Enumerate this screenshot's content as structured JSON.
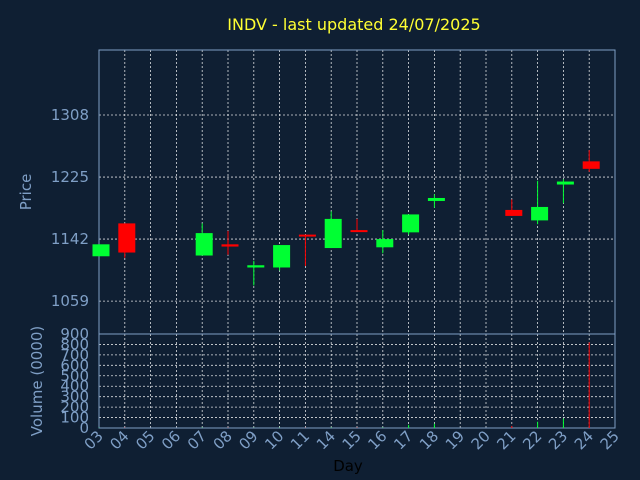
{
  "colors": {
    "background": "#0f1f33",
    "title": "#ffff33",
    "axis": "#7f9fc6",
    "up": "#00ff33",
    "down": "#ff0000",
    "grid": "#ffffff",
    "xlabel": "#000000"
  },
  "chart_data": [
    {
      "type": "candlestick",
      "title": "INDV - last updated 24/07/2025",
      "ylabel": "Price",
      "yticks": [
        1059,
        1142,
        1225,
        1308
      ],
      "ylim": [
        1015,
        1395
      ],
      "grid": true,
      "candles": [
        {
          "day": "03",
          "open": 1119,
          "close": 1135,
          "high": 1135,
          "low": 1119,
          "dir": "up"
        },
        {
          "day": "04",
          "open": 1163,
          "close": 1124,
          "high": 1163,
          "low": 1117,
          "dir": "down"
        },
        {
          "day": "07",
          "open": 1120,
          "close": 1150,
          "high": 1163,
          "low": 1120,
          "dir": "up"
        },
        {
          "day": "08",
          "open": 1135,
          "close": 1132,
          "high": 1153,
          "low": 1121,
          "dir": "down"
        },
        {
          "day": "09",
          "open": 1104,
          "close": 1107,
          "high": 1113,
          "low": 1080,
          "dir": "up"
        },
        {
          "day": "10",
          "open": 1104,
          "close": 1134,
          "high": 1134,
          "low": 1100,
          "dir": "up"
        },
        {
          "day": "11",
          "open": 1148,
          "close": 1147,
          "high": 1148,
          "low": 1106,
          "dir": "down"
        },
        {
          "day": "14",
          "open": 1130,
          "close": 1169,
          "high": 1179,
          "low": 1130,
          "dir": "up"
        },
        {
          "day": "15",
          "open": 1154,
          "close": 1152,
          "high": 1169,
          "low": 1152,
          "dir": "down"
        },
        {
          "day": "16",
          "open": 1131,
          "close": 1142,
          "high": 1154,
          "low": 1123,
          "dir": "up"
        },
        {
          "day": "17",
          "open": 1151,
          "close": 1175,
          "high": 1175,
          "low": 1148,
          "dir": "up"
        },
        {
          "day": "18",
          "open": 1193,
          "close": 1197,
          "high": 1202,
          "low": 1184,
          "dir": "up"
        },
        {
          "day": "21",
          "open": 1181,
          "close": 1173,
          "high": 1195,
          "low": 1173,
          "dir": "down"
        },
        {
          "day": "22",
          "open": 1167,
          "close": 1185,
          "high": 1220,
          "low": 1162,
          "dir": "up"
        },
        {
          "day": "23",
          "open": 1215,
          "close": 1219,
          "high": 1222,
          "low": 1190,
          "dir": "up"
        },
        {
          "day": "24",
          "open": 1246,
          "close": 1236,
          "high": 1261,
          "low": 1232,
          "dir": "down"
        }
      ]
    },
    {
      "type": "bar",
      "ylabel": "Volume (0000)",
      "xlabel": "Day",
      "yticks": [
        0,
        100,
        200,
        300,
        400,
        500,
        600,
        700,
        800,
        900
      ],
      "ylim": [
        0,
        900
      ],
      "grid": true,
      "x_ticks": [
        "03",
        "04",
        "05",
        "06",
        "07",
        "08",
        "09",
        "10",
        "11",
        "14",
        "15",
        "16",
        "17",
        "18",
        "19",
        "20",
        "21",
        "22",
        "23",
        "24",
        "25"
      ],
      "volumes": [
        {
          "day": "03",
          "value": 2,
          "dir": "up"
        },
        {
          "day": "04",
          "value": 3,
          "dir": "down"
        },
        {
          "day": "07",
          "value": 3,
          "dir": "up"
        },
        {
          "day": "08",
          "value": 2,
          "dir": "down"
        },
        {
          "day": "09",
          "value": 2,
          "dir": "up"
        },
        {
          "day": "10",
          "value": 3,
          "dir": "up"
        },
        {
          "day": "11",
          "value": 2,
          "dir": "down"
        },
        {
          "day": "14",
          "value": 4,
          "dir": "up"
        },
        {
          "day": "15",
          "value": 3,
          "dir": "down"
        },
        {
          "day": "16",
          "value": 4,
          "dir": "up"
        },
        {
          "day": "17",
          "value": 30,
          "dir": "up"
        },
        {
          "day": "18",
          "value": 40,
          "dir": "up"
        },
        {
          "day": "21",
          "value": 20,
          "dir": "down"
        },
        {
          "day": "22",
          "value": 60,
          "dir": "up"
        },
        {
          "day": "23",
          "value": 90,
          "dir": "up"
        },
        {
          "day": "24",
          "value": 820,
          "dir": "down"
        }
      ]
    }
  ]
}
